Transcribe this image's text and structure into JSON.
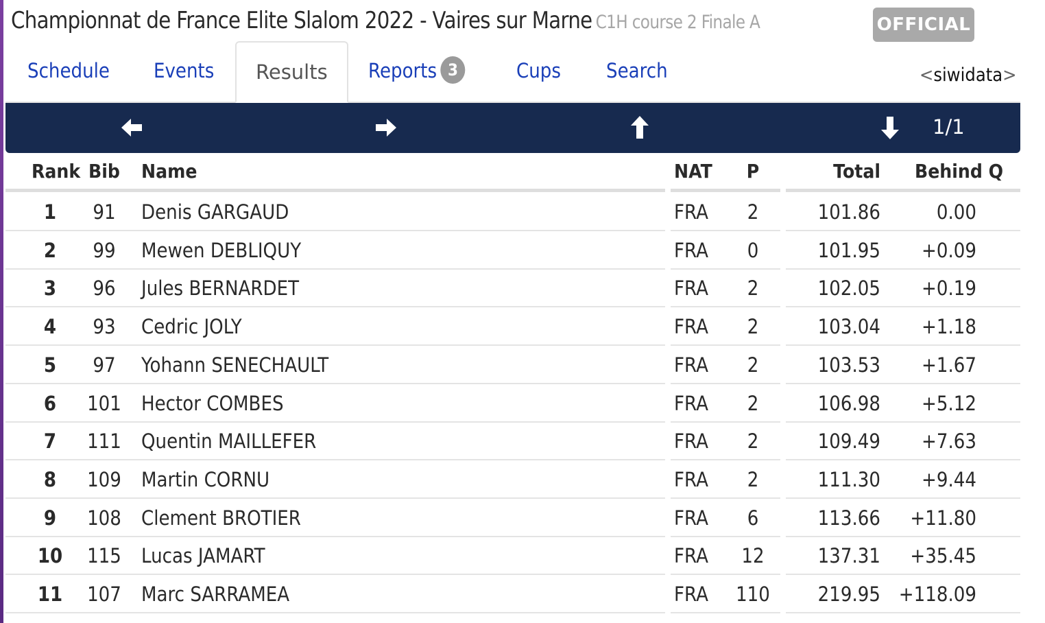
{
  "header": {
    "title": "Championnat de France Elite Slalom 2022 - Vaires sur Marne",
    "subtitle": "C1H course 2 Finale A",
    "status_badge": "OFFICIAL"
  },
  "tabs": [
    {
      "label": "Schedule",
      "active": false
    },
    {
      "label": "Events",
      "active": false
    },
    {
      "label": "Results",
      "active": true
    },
    {
      "label": "Reports",
      "active": false,
      "badge": "3"
    },
    {
      "label": "Cups",
      "active": false
    },
    {
      "label": "Search",
      "active": false
    }
  ],
  "brand": {
    "open": "<",
    "name": "siwidata",
    "close": ">"
  },
  "navbar": {
    "icons": [
      "arrow-left-icon",
      "arrow-right-icon",
      "arrow-up-icon",
      "arrow-down-icon"
    ],
    "page": "1/1",
    "bg_color": "#172a4f"
  },
  "table": {
    "columns": {
      "rank": "Rank",
      "bib": "Bib",
      "name": "Name",
      "nat": "NAT",
      "p": "P",
      "total": "Total",
      "behind": "Behind Q"
    },
    "rows": [
      {
        "rank": "1",
        "bib": "91",
        "name": "Denis GARGAUD",
        "nat": "FRA",
        "p": "2",
        "total": "101.86",
        "behind": "0.00"
      },
      {
        "rank": "2",
        "bib": "99",
        "name": "Mewen DEBLIQUY",
        "nat": "FRA",
        "p": "0",
        "total": "101.95",
        "behind": "+0.09"
      },
      {
        "rank": "3",
        "bib": "96",
        "name": "Jules BERNARDET",
        "nat": "FRA",
        "p": "2",
        "total": "102.05",
        "behind": "+0.19"
      },
      {
        "rank": "4",
        "bib": "93",
        "name": "Cedric JOLY",
        "nat": "FRA",
        "p": "2",
        "total": "103.04",
        "behind": "+1.18"
      },
      {
        "rank": "5",
        "bib": "97",
        "name": "Yohann SENECHAULT",
        "nat": "FRA",
        "p": "2",
        "total": "103.53",
        "behind": "+1.67"
      },
      {
        "rank": "6",
        "bib": "101",
        "name": "Hector COMBES",
        "nat": "FRA",
        "p": "2",
        "total": "106.98",
        "behind": "+5.12"
      },
      {
        "rank": "7",
        "bib": "111",
        "name": "Quentin MAILLEFER",
        "nat": "FRA",
        "p": "2",
        "total": "109.49",
        "behind": "+7.63"
      },
      {
        "rank": "8",
        "bib": "109",
        "name": "Martin CORNU",
        "nat": "FRA",
        "p": "2",
        "total": "111.30",
        "behind": "+9.44"
      },
      {
        "rank": "9",
        "bib": "108",
        "name": "Clement BROTIER",
        "nat": "FRA",
        "p": "6",
        "total": "113.66",
        "behind": "+11.80"
      },
      {
        "rank": "10",
        "bib": "115",
        "name": "Lucas JAMART",
        "nat": "FRA",
        "p": "12",
        "total": "137.31",
        "behind": "+35.45"
      },
      {
        "rank": "11",
        "bib": "107",
        "name": "Marc SARRAMEA",
        "nat": "FRA",
        "p": "110",
        "total": "219.95",
        "behind": "+118.09"
      }
    ]
  }
}
